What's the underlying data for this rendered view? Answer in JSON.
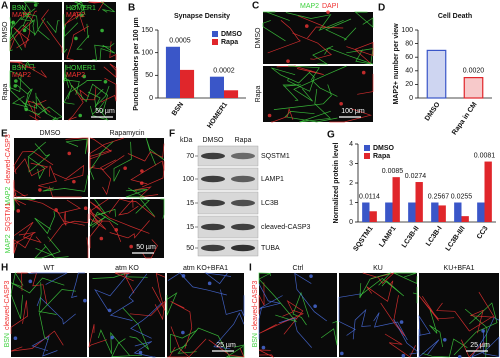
{
  "panel_a": {
    "letter": "A",
    "rows": [
      "DMSO",
      "Rapa"
    ],
    "stains_left": [
      "BSN",
      "MAP2"
    ],
    "stains_right": [
      "HOMER1",
      "MAP2"
    ],
    "scale_bar": "50 µm"
  },
  "panel_c": {
    "letter": "C",
    "stains": [
      "MAP2",
      "DAPI"
    ],
    "rows": [
      "DMSO",
      "Rapa"
    ],
    "scale_bar": "100 µm"
  },
  "panel_e": {
    "letter": "E",
    "columns": [
      "DMSO",
      "Rapamycin"
    ],
    "row1_stains": [
      "MAP2",
      "cleaved-CASP3"
    ],
    "row2_stains": [
      "MAP2",
      "SQSTM1"
    ],
    "scale_bar": "50 µm"
  },
  "panel_f": {
    "letter": "F",
    "unit": "kDa",
    "columns": [
      "DMSO",
      "Rapa"
    ],
    "bands": [
      {
        "kda": "70",
        "label": "SQSTM1"
      },
      {
        "kda": "100",
        "label": "LAMP1"
      },
      {
        "kda": "15",
        "label": "LC3B"
      },
      {
        "kda": "15",
        "label": "cleaved-CASP3"
      },
      {
        "kda": "50",
        "label": "TUBA"
      }
    ]
  },
  "panel_h": {
    "letter": "H",
    "columns": [
      "WT",
      "atm KO",
      "atm KO+BFA1"
    ],
    "stains": [
      "BSN",
      "cleaved-CASP3"
    ],
    "scale_bar": "25 µm"
  },
  "panel_i": {
    "letter": "I",
    "columns": [
      "Ctrl",
      "KU",
      "KU+BFA1"
    ],
    "stains": [
      "BSN",
      "cleaved-CASP3"
    ],
    "scale_bar": "25 µm"
  },
  "chart_data": [
    {
      "letter": "B",
      "type": "bar",
      "title": "Synapse Density",
      "y_label": "Puncta numbers per 100 µm",
      "categories": [
        "BSN",
        "HOMER1"
      ],
      "series": [
        {
          "name": "DMSO",
          "color": "#3a56c8",
          "values": [
            113,
            47
          ]
        },
        {
          "name": "Rapa",
          "color": "#e0262b",
          "values": [
            62,
            17
          ]
        }
      ],
      "p_values": [
        "0.0005",
        "0.0002"
      ],
      "ylim": [
        0,
        150
      ],
      "yticks": [
        0,
        50,
        100,
        150
      ],
      "legend": "top-right"
    },
    {
      "letter": "D",
      "type": "bar",
      "title": "Cell Death",
      "y_label": "MAP2+ number per view",
      "categories": [
        "DMSO",
        "Rapa in CM"
      ],
      "values": [
        70,
        30
      ],
      "colors": [
        "#3a56c8",
        "#e0262b"
      ],
      "p_values": [
        "0.0020"
      ],
      "ylim": [
        0,
        100
      ],
      "yticks": [
        0,
        20,
        40,
        60,
        80,
        100
      ]
    },
    {
      "letter": "G",
      "type": "bar",
      "y_label": "Normalized protein level",
      "categories": [
        "SQSTM1",
        "LAMP1",
        "LC3B-II",
        "LC3B-I",
        "LC3B-II/I",
        "CC3"
      ],
      "series": [
        {
          "name": "DMSO",
          "color": "#3a56c8",
          "values": [
            1,
            1,
            1,
            1,
            1,
            1
          ]
        },
        {
          "name": "Rapa",
          "color": "#e0262b",
          "values": [
            0.55,
            2.3,
            2.05,
            0.85,
            0.3,
            3.1
          ]
        }
      ],
      "p_values": [
        "0.0114",
        "0.0085",
        "0.0274",
        "0.2567",
        "0.0255",
        "0.0081"
      ],
      "ylim": [
        0,
        4
      ],
      "yticks": [
        0,
        1,
        2,
        3,
        4
      ],
      "legend": "top-left"
    }
  ]
}
